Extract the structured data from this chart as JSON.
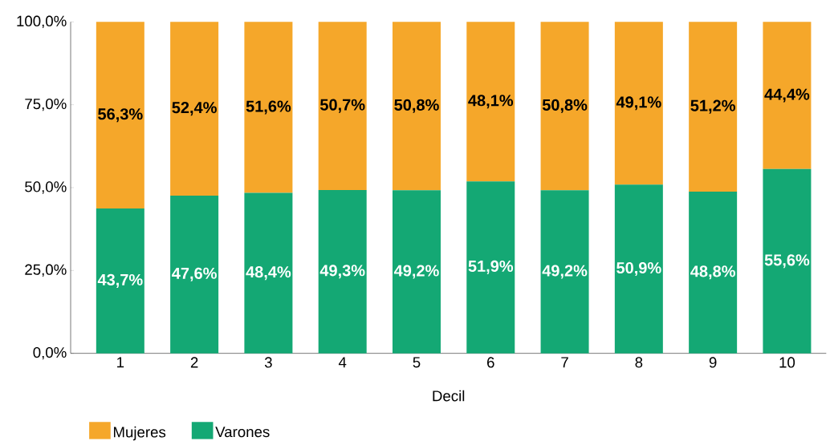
{
  "chart_data": {
    "type": "bar",
    "stacked": true,
    "xlabel": "Decil",
    "categories": [
      "1",
      "2",
      "3",
      "4",
      "5",
      "6",
      "7",
      "8",
      "9",
      "10"
    ],
    "series": [
      {
        "name": "Varones",
        "color": "#14a874",
        "values": [
          43.7,
          47.6,
          48.4,
          49.3,
          49.2,
          51.9,
          49.2,
          50.9,
          48.8,
          55.6
        ],
        "value_labels": [
          "43,7%",
          "47,6%",
          "48,4%",
          "49,3%",
          "49,2%",
          "51,9%",
          "49,2%",
          "50,9%",
          "48,8%",
          "55,6%"
        ]
      },
      {
        "name": "Mujeres",
        "color": "#f5a72a",
        "values": [
          56.3,
          52.4,
          51.6,
          50.7,
          50.8,
          48.1,
          50.8,
          49.1,
          51.2,
          44.4
        ],
        "value_labels": [
          "56,3%",
          "52,4%",
          "51,6%",
          "50,7%",
          "50,8%",
          "48,1%",
          "50,8%",
          "49,1%",
          "51,2%",
          "44,4%"
        ]
      }
    ],
    "ylim": [
      0,
      100
    ],
    "yticks": [
      {
        "value": 0,
        "label": "0,0%"
      },
      {
        "value": 25,
        "label": "25,0%"
      },
      {
        "value": 50,
        "label": "50,0%"
      },
      {
        "value": 75,
        "label": "75,0%"
      },
      {
        "value": 100,
        "label": "100,0%"
      }
    ],
    "legend": "bottom left"
  }
}
